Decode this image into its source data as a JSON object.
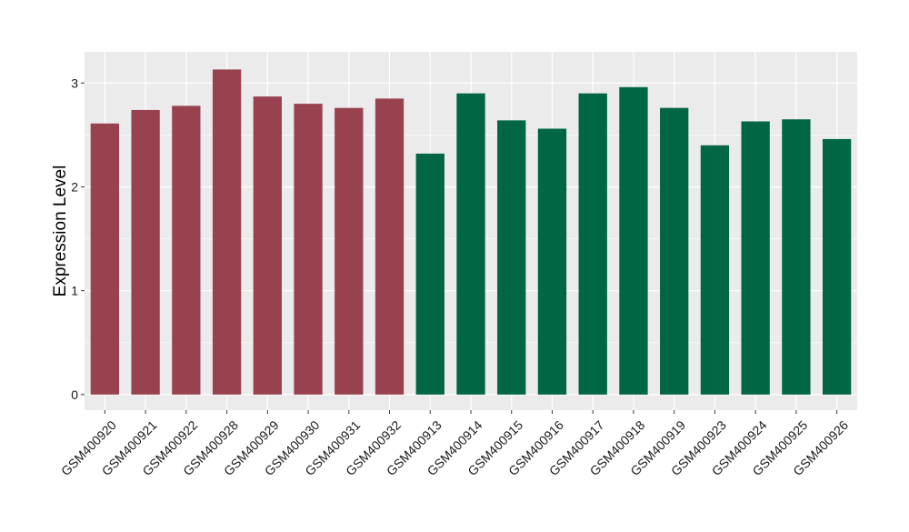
{
  "chart_data": {
    "type": "bar",
    "ylabel": "Expression Level",
    "xlabel": "",
    "ylim": [
      -0.15,
      3.3
    ],
    "yticks": [
      0,
      1,
      2,
      3
    ],
    "grid": true,
    "background_color": "#EBEBEB",
    "categories": [
      "GSM400920",
      "GSM400921",
      "GSM400922",
      "GSM400928",
      "GSM400929",
      "GSM400930",
      "GSM400931",
      "GSM400932",
      "GSM400913",
      "GSM400914",
      "GSM400915",
      "GSM400916",
      "GSM400917",
      "GSM400918",
      "GSM400919",
      "GSM400923",
      "GSM400924",
      "GSM400925",
      "GSM400926"
    ],
    "values": [
      2.61,
      2.74,
      2.78,
      3.13,
      2.87,
      2.8,
      2.76,
      2.85,
      2.32,
      2.9,
      2.64,
      2.56,
      2.9,
      2.96,
      2.76,
      2.4,
      2.63,
      2.65,
      2.46
    ],
    "bar_colors": [
      "#99424F",
      "#99424F",
      "#99424F",
      "#99424F",
      "#99424F",
      "#99424F",
      "#99424F",
      "#99424F",
      "#006644",
      "#006644",
      "#006644",
      "#006644",
      "#006644",
      "#006644",
      "#006644",
      "#006644",
      "#006644",
      "#006644",
      "#006644"
    ]
  }
}
